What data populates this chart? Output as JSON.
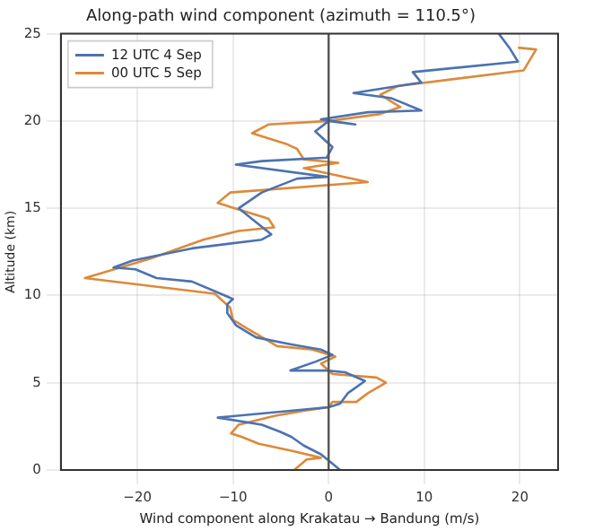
{
  "chart_data": {
    "type": "line",
    "title": "Along-path wind component (azimuth = 110.5°)",
    "xlabel": "Wind component along Krakatau → Bandung (m/s)",
    "ylabel": "Altitude (km)",
    "xlim": [
      -28,
      24
    ],
    "xticks": [
      -20,
      -10,
      0,
      10,
      20
    ],
    "ylim": [
      0,
      25
    ],
    "yticks": [
      0,
      5,
      10,
      15,
      20,
      25
    ],
    "grid": true,
    "legend": "top left",
    "marker": "none",
    "line_style": "solid",
    "ref_lines": [
      {
        "axis": "x",
        "value": 0,
        "color": "#555555"
      }
    ],
    "series": [
      {
        "name": "12 UTC 4 Sep",
        "color": "#4c72b0",
        "x": [
          1.2,
          0.1,
          -0.8,
          -2.6,
          -3.9,
          -5.1,
          -7,
          -11.6,
          0,
          1.2,
          2,
          3.8,
          1.7,
          -0.2,
          -4,
          -1.4,
          0.4,
          -0.8,
          -3.9,
          -7.6,
          -9.7,
          -10.6,
          -10.6,
          -10,
          -14.3,
          -18,
          -20.2,
          -22.5,
          -20.5,
          -14.3,
          -7,
          -6,
          -9.4,
          -7,
          -3.3,
          -0.2,
          -9.7,
          -7,
          -0.2,
          0.4,
          -1.4,
          0,
          2.8,
          -0.8,
          4.1,
          9.7,
          6.6,
          2.6,
          8.4,
          9.7,
          8.8,
          19.8,
          18.9,
          17.8
        ],
        "values": [
          0,
          0.5,
          0.9,
          1.4,
          1.9,
          2.2,
          2.6,
          3,
          3.6,
          3.8,
          4.4,
          5.1,
          5.6,
          5.7,
          5.7,
          6.2,
          6.6,
          6.9,
          7.2,
          7.6,
          8.3,
          9,
          9.5,
          9.8,
          10.8,
          11,
          11.5,
          11.6,
          12,
          12.7,
          13.2,
          13.5,
          15,
          15.9,
          16.7,
          16.8,
          17.5,
          17.7,
          17.9,
          18.5,
          19.4,
          20,
          19.8,
          20.1,
          20.5,
          20.6,
          21.3,
          21.6,
          22.1,
          22.2,
          22.8,
          23.4,
          24.2,
          25
        ]
      },
      {
        "name": "00 UTC 5 Sep",
        "color": "#dd8a3a",
        "x": [
          -3.6,
          -2.3,
          -0.8,
          -3.9,
          -7.3,
          -9.1,
          -10.2,
          -9.4,
          -5.7,
          -2.6,
          0,
          0.4,
          2.9,
          4.1,
          6,
          5,
          0.4,
          -0.8,
          0.7,
          -1.7,
          -5.4,
          -6.3,
          -8.5,
          -10,
          -10.3,
          -11.9,
          -25.5,
          -18.7,
          -13.1,
          -9.4,
          -5.7,
          -6.3,
          -11.6,
          -10.3,
          4.1,
          -2.6,
          1,
          -2.6,
          -3.3,
          -4.5,
          -6.3,
          -8,
          -6.3,
          0,
          5.4,
          7.5,
          5.4,
          7.2,
          20.4,
          21.7,
          19.8
        ],
        "values": [
          0,
          0.6,
          0.7,
          1.1,
          1.5,
          1.9,
          2.1,
          2.6,
          3.1,
          3.4,
          3.6,
          3.9,
          3.9,
          4.4,
          5,
          5.3,
          5.5,
          6.1,
          6.5,
          6.9,
          7.1,
          7.4,
          8.1,
          8.6,
          9.3,
          10.1,
          11,
          12.1,
          13.2,
          13.7,
          13.9,
          14.4,
          15.3,
          15.9,
          16.5,
          17.3,
          17.6,
          17.8,
          18.4,
          18.7,
          19,
          19.3,
          19.8,
          20,
          20.4,
          20.8,
          21.5,
          22,
          22.9,
          24.1,
          24.2
        ]
      }
    ]
  }
}
